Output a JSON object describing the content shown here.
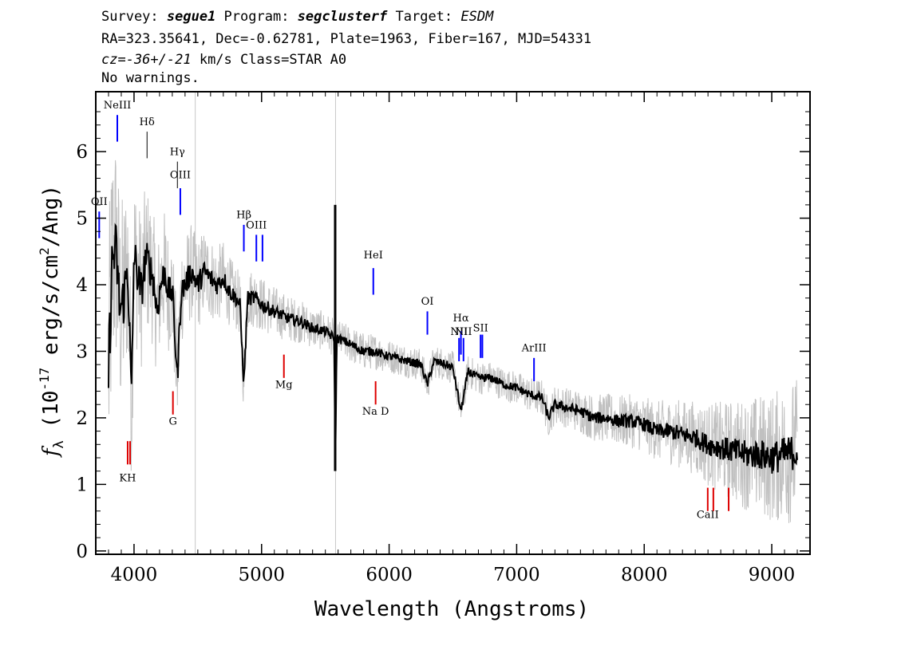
{
  "header": {
    "survey_label": "Survey: ",
    "survey": "segue1",
    "program_label": " Program: ",
    "program": "segclusterf",
    "target_label": " Target: ",
    "target": "ESDM",
    "line2": "RA=323.35641, Dec=-0.62781, Plate=1963, Fiber=167, MJD=54331",
    "cz": "cz=-36+/-21",
    "cz_rest": " km/s Class=STAR A0",
    "line4": "No warnings."
  },
  "chart_data": {
    "type": "line",
    "xlabel": "Wavelength (Angstroms)",
    "ylabel_main": "f",
    "ylabel_sub": "λ",
    "ylabel_rest": " (10",
    "ylabel_exp1": "-17",
    "ylabel_mid": " erg/s/cm",
    "ylabel_exp2": "2",
    "ylabel_end": "/Ang)",
    "xlim": [
      3700,
      9300
    ],
    "ylim": [
      -0.05,
      6.9
    ],
    "x_ticks": [
      4000,
      5000,
      6000,
      7000,
      8000,
      9000
    ],
    "x_tick_labels": [
      "4000",
      "5000",
      "6000",
      "7000",
      "8000",
      "9000"
    ],
    "y_ticks": [
      0,
      1,
      2,
      3,
      4,
      5,
      6
    ],
    "y_tick_labels": [
      "0",
      "1",
      "2",
      "3",
      "4",
      "5",
      "6"
    ],
    "grid": false,
    "vertical_gray_lines": [
      4480,
      5580
    ],
    "colors": {
      "flux": "#000000",
      "error": "#c0c0c0",
      "emission": "#0000ff",
      "absorption": "#dd0000",
      "balmer": "#000000"
    },
    "series": [
      {
        "name": "flux",
        "x": [
          3800,
          3830,
          3860,
          3890,
          3920,
          3950,
          3980,
          4000,
          4030,
          4060,
          4090,
          4120,
          4150,
          4180,
          4210,
          4240,
          4270,
          4300,
          4340,
          4370,
          4400,
          4450,
          4500,
          4550,
          4600,
          4650,
          4700,
          4750,
          4800,
          4830,
          4861,
          4890,
          4950,
          5000,
          5100,
          5200,
          5300,
          5400,
          5500,
          5570,
          5577,
          5590,
          5650,
          5700,
          5800,
          5890,
          5950,
          6050,
          6150,
          6250,
          6300,
          6350,
          6450,
          6500,
          6563,
          6620,
          6700,
          6800,
          6900,
          7000,
          7100,
          7200,
          7250,
          7300,
          7400,
          7500,
          7600,
          7700,
          7800,
          7900,
          8000,
          8100,
          8200,
          8300,
          8400,
          8500,
          8600,
          8700,
          8800,
          8900,
          9000,
          9100,
          9200
        ],
        "y": [
          2.7,
          4.4,
          4.5,
          3.6,
          3.8,
          4.3,
          2.3,
          4.5,
          4.1,
          3.9,
          4.4,
          4.3,
          4.1,
          3.6,
          4.0,
          4.2,
          3.9,
          3.9,
          2.6,
          3.9,
          4.0,
          4.2,
          4.0,
          4.2,
          4.1,
          4.0,
          4.1,
          3.9,
          3.8,
          3.7,
          2.5,
          3.8,
          3.8,
          3.7,
          3.6,
          3.5,
          3.45,
          3.35,
          3.3,
          3.2,
          1.2,
          3.2,
          3.15,
          3.1,
          3.0,
          3.0,
          2.95,
          2.9,
          2.85,
          2.8,
          2.5,
          2.85,
          2.8,
          2.75,
          2.1,
          2.7,
          2.6,
          2.6,
          2.5,
          2.45,
          2.35,
          2.3,
          2.0,
          2.2,
          2.15,
          2.1,
          2.0,
          2.0,
          1.95,
          1.95,
          1.9,
          1.8,
          1.8,
          1.75,
          1.7,
          1.6,
          1.55,
          1.5,
          1.45,
          1.45,
          1.4,
          1.45,
          1.5
        ]
      },
      {
        "name": "error",
        "x": [
          3800,
          4000,
          4200,
          4400,
          4600,
          4800,
          5000,
          5200,
          5400,
          5600,
          5800,
          6000,
          6200,
          6400,
          6600,
          6800,
          7000,
          7200,
          7400,
          7600,
          7800,
          8000,
          8200,
          8400,
          8600,
          8800,
          9000,
          9200
        ],
        "y": [
          1.5,
          0.9,
          0.7,
          0.55,
          0.45,
          0.35,
          0.3,
          0.25,
          0.22,
          0.2,
          0.2,
          0.18,
          0.18,
          0.18,
          0.18,
          0.18,
          0.18,
          0.2,
          0.22,
          0.25,
          0.28,
          0.3,
          0.35,
          0.4,
          0.5,
          0.6,
          0.7,
          0.8
        ]
      }
    ],
    "lines": [
      {
        "label": "OII",
        "x": 3727,
        "y_top": 5.1,
        "y_bottom": 4.7,
        "kind": "emission",
        "label_y": 5.15
      },
      {
        "label": "NeIII",
        "x": 3869,
        "y_top": 6.55,
        "y_bottom": 6.15,
        "kind": "emission",
        "label_y": 6.6
      },
      {
        "label": "Hδ",
        "x": 4102,
        "y_top": 6.3,
        "y_bottom": 5.9,
        "kind": "balmer",
        "label_y": 6.35
      },
      {
        "label": "Hγ",
        "x": 4340,
        "y_top": 5.85,
        "y_bottom": 5.45,
        "kind": "balmer",
        "label_y": 5.9
      },
      {
        "label": "OIII",
        "x": 4363,
        "y_top": 5.45,
        "y_bottom": 5.05,
        "kind": "emission",
        "label_y": 5.55
      },
      {
        "label": "Hβ",
        "x": 4861,
        "y_top": 4.9,
        "y_bottom": 4.5,
        "kind": "emission",
        "label_y": 4.95
      },
      {
        "label": "OIII",
        "x": 4959,
        "y_top": 4.75,
        "y_bottom": 4.35,
        "kind": "emission",
        "label_y": 4.8
      },
      {
        "label": "",
        "x": 5007,
        "y_top": 4.75,
        "y_bottom": 4.35,
        "kind": "emission",
        "label_y": 0
      },
      {
        "label": "HeI",
        "x": 5876,
        "y_top": 4.25,
        "y_bottom": 3.85,
        "kind": "emission",
        "label_y": 4.35
      },
      {
        "label": "OI",
        "x": 6300,
        "y_top": 3.6,
        "y_bottom": 3.25,
        "kind": "emission",
        "label_y": 3.65
      },
      {
        "label": "NII",
        "x": 6548,
        "y_top": 3.2,
        "y_bottom": 2.85,
        "kind": "emission",
        "label_y": 3.2
      },
      {
        "label": "Hα",
        "x": 6563,
        "y_top": 3.3,
        "y_bottom": 2.95,
        "kind": "emission",
        "label_y": 3.4
      },
      {
        "label": "NII",
        "x": 6583,
        "y_top": 3.2,
        "y_bottom": 2.85,
        "kind": "emission",
        "label_y": 3.2
      },
      {
        "label": "SII",
        "x": 6717,
        "y_top": 3.25,
        "y_bottom": 2.9,
        "kind": "emission",
        "label_y": 3.25
      },
      {
        "label": "",
        "x": 6731,
        "y_top": 3.25,
        "y_bottom": 2.9,
        "kind": "emission",
        "label_y": 0
      },
      {
        "label": "ArIII",
        "x": 7136,
        "y_top": 2.9,
        "y_bottom": 2.55,
        "kind": "emission",
        "label_y": 2.95
      },
      {
        "label": "KH",
        "x": 3950,
        "y_top": 1.65,
        "y_bottom": 1.3,
        "kind": "absorption",
        "label_y": 1.0
      },
      {
        "label": "",
        "x": 3969,
        "y_top": 1.65,
        "y_bottom": 1.3,
        "kind": "absorption",
        "label_y": 0
      },
      {
        "label": "G",
        "x": 4305,
        "y_top": 2.4,
        "y_bottom": 2.05,
        "kind": "absorption",
        "label_y": 1.85
      },
      {
        "label": "Mg",
        "x": 5175,
        "y_top": 2.95,
        "y_bottom": 2.6,
        "kind": "absorption",
        "label_y": 2.4
      },
      {
        "label": "Na D",
        "x": 5894,
        "y_top": 2.55,
        "y_bottom": 2.2,
        "kind": "absorption",
        "label_y": 2.0
      },
      {
        "label": "CaII",
        "x": 8498,
        "y_top": 0.95,
        "y_bottom": 0.6,
        "kind": "absorption",
        "label_y": 0.45
      },
      {
        "label": "",
        "x": 8542,
        "y_top": 0.95,
        "y_bottom": 0.6,
        "kind": "absorption",
        "label_y": 0
      },
      {
        "label": "",
        "x": 8662,
        "y_top": 0.95,
        "y_bottom": 0.6,
        "kind": "absorption",
        "label_y": 0
      }
    ]
  }
}
